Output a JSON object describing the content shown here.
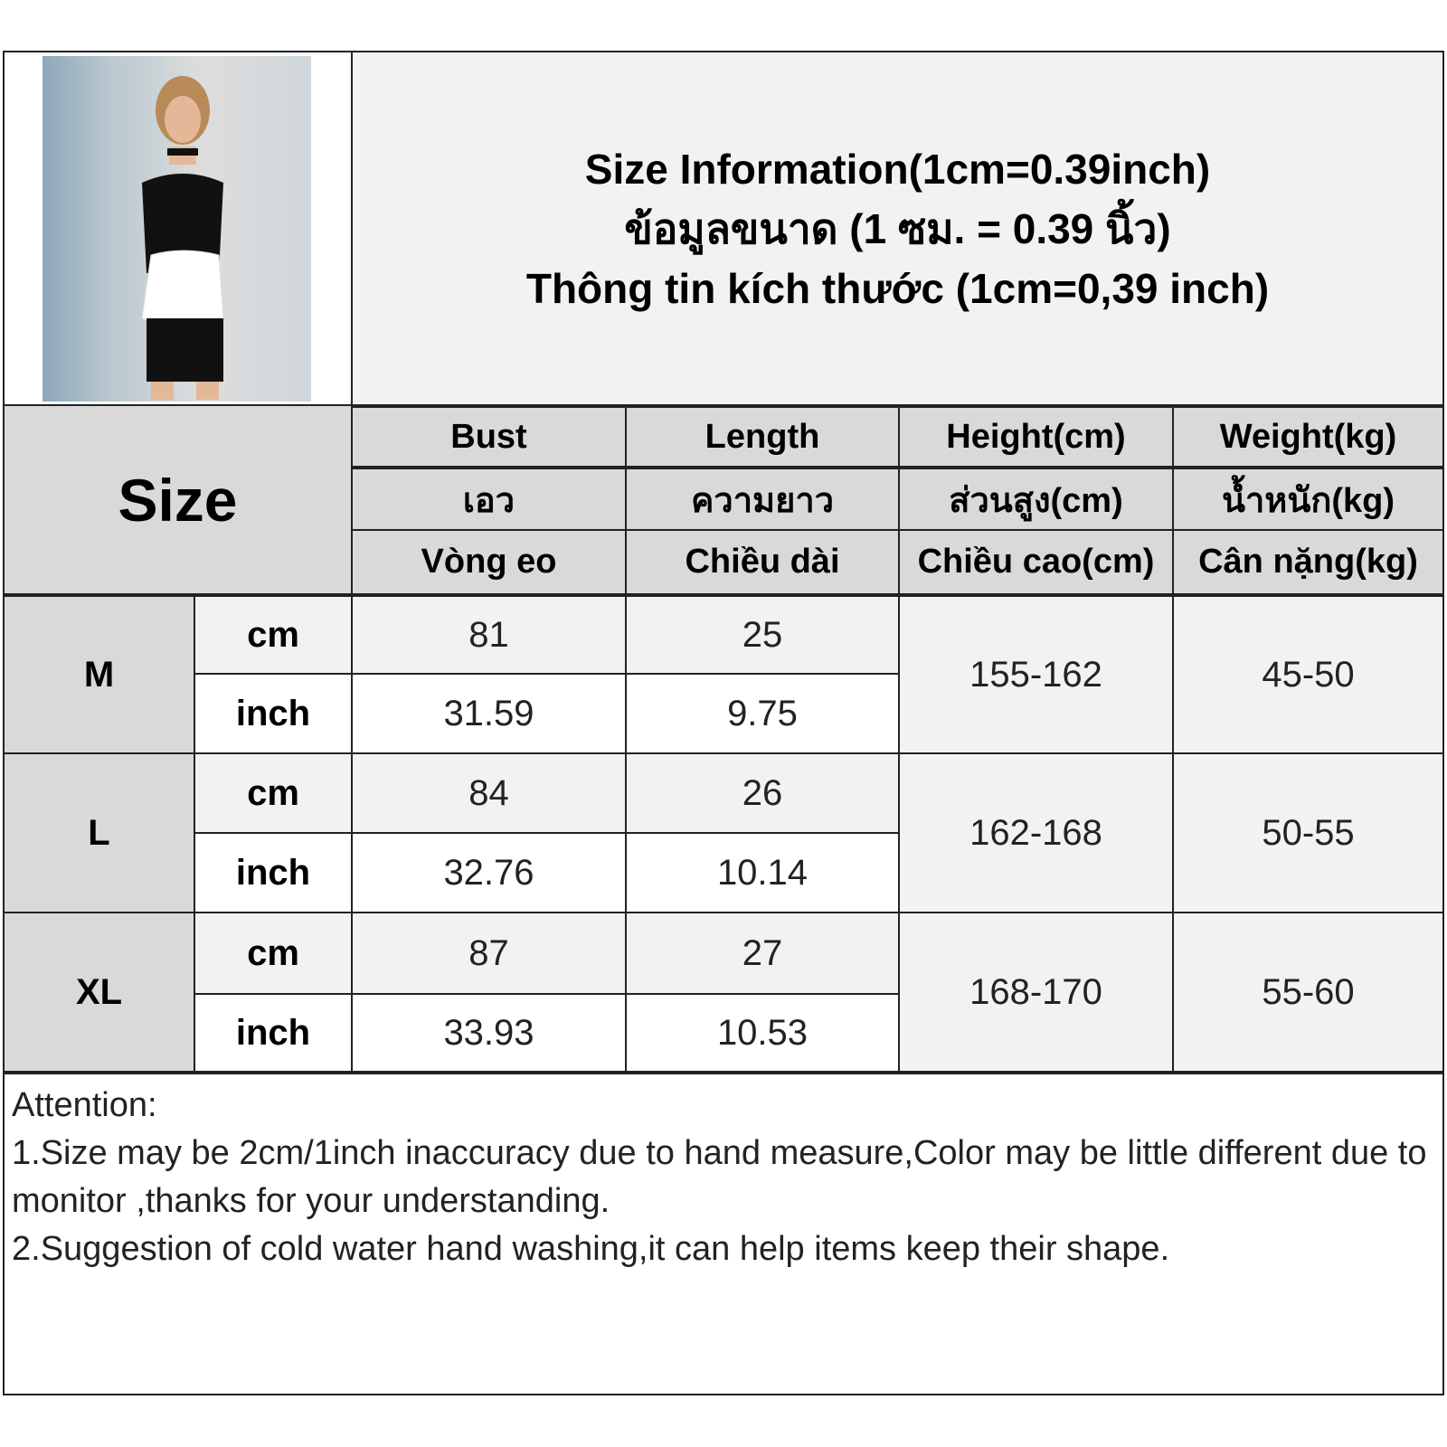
{
  "header": {
    "title_en": "Size Information(1cm=0.39inch)",
    "title_th": "ข้อมูลขนาด (1 ซม. = 0.39 นิ้ว)",
    "title_vi": "Thông tin kích thước (1cm=0,39 inch)"
  },
  "table": {
    "size_label": "Size",
    "columns": [
      {
        "en": "Bust",
        "th": "เอว",
        "vi": "Vòng eo"
      },
      {
        "en": "Length",
        "th": "ความยาว",
        "vi": "Chiều dài"
      },
      {
        "en": "Height(cm)",
        "th": "ส่วนสูง(cm)",
        "vi": "Chiều cao(cm)"
      },
      {
        "en": "Weight(kg)",
        "th": "น้ำหนัก(kg)",
        "vi": "Cân nặng(kg)"
      }
    ],
    "unit_cm": "cm",
    "unit_inch": "inch",
    "rows": [
      {
        "size": "M",
        "bust_cm": "81",
        "length_cm": "25",
        "bust_inch": "31.59",
        "length_inch": "9.75",
        "height": "155-162",
        "weight": "45-50"
      },
      {
        "size": "L",
        "bust_cm": "84",
        "length_cm": "26",
        "bust_inch": "32.76",
        "length_inch": "10.14",
        "height": "162-168",
        "weight": "50-55"
      },
      {
        "size": "XL",
        "bust_cm": "87",
        "length_cm": "27",
        "bust_inch": "33.93",
        "length_inch": "10.53",
        "height": "168-170",
        "weight": "55-60"
      }
    ]
  },
  "attention": {
    "title": "Attention:",
    "line1": "1.Size may be 2cm/1inch inaccuracy due to hand measure,Color may be little different due to monitor ,thanks for your understanding.",
    "line2": "2.Suggestion of cold water hand washing,it can help items keep their shape."
  }
}
